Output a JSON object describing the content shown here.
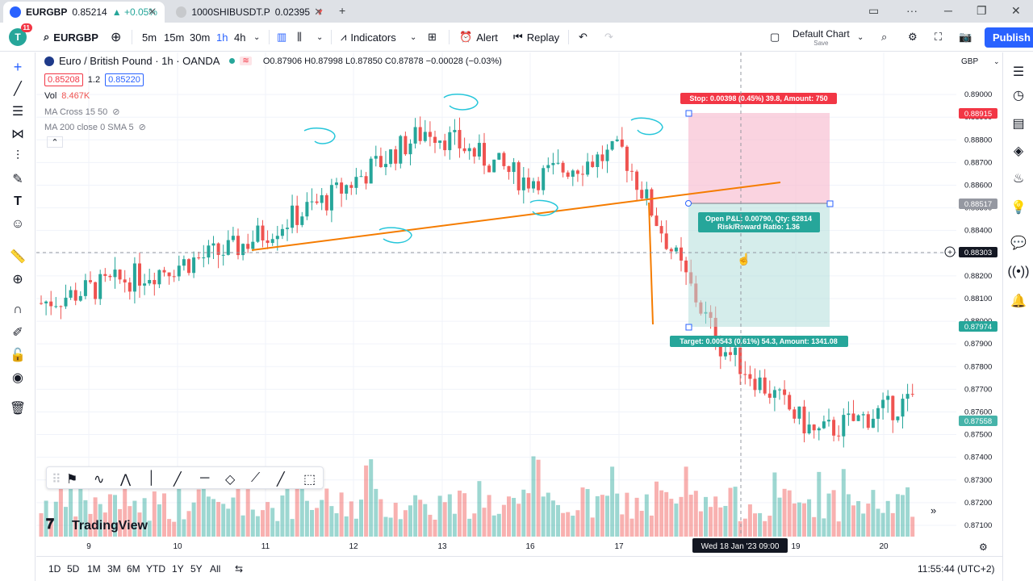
{
  "browser_tabs": [
    {
      "symbol": "EURGBP",
      "price": "0.85214",
      "change": "▲ +0.05%"
    },
    {
      "symbol": "1000SHIBUSDT.P",
      "price": "0.02395",
      "change": "▼"
    }
  ],
  "toolbar": {
    "avatar_letter": "T",
    "notifications": "11",
    "symbol": "EURGBP",
    "intervals": [
      "5m",
      "15m",
      "30m",
      "1h",
      "4h"
    ],
    "active_interval": "1h",
    "indicators_label": "Indicators",
    "alert_label": "Alert",
    "replay_label": "Replay",
    "layout_name": "Default Chart",
    "layout_status": "Save",
    "publish_label": "Publish"
  },
  "legend": {
    "title": "Euro / British Pound · 1h · OANDA",
    "ohlc": "O0.87906 H0.87998 L0.87850 C0.87878 −0.00028 (−0.03%)",
    "bid": "0.85208",
    "spread": "1.2",
    "ask": "0.85220",
    "vol_label": "Vol",
    "vol_value": "8.467K",
    "indicator1": "MA Cross 15 50",
    "indicator2": "MA 200 close 0 SMA 5"
  },
  "price_axis": {
    "currency": "GBP",
    "ticks": [
      "0.89000",
      "0.88900",
      "0.88800",
      "0.88700",
      "0.88600",
      "0.88500",
      "0.88400",
      "0.88300",
      "0.88200",
      "0.88100",
      "0.88000",
      "0.87900",
      "0.87800",
      "0.87700",
      "0.87600",
      "0.87500",
      "0.87400",
      "0.87300",
      "0.87200",
      "0.87100"
    ],
    "stop_label": "0.88915",
    "entry_label": "0.88517",
    "cursor_label": "0.88303",
    "target_label": "0.87974",
    "last_label": "0.87558"
  },
  "time_axis": {
    "ticks": [
      "9",
      "10",
      "11",
      "12",
      "13",
      "16",
      "17",
      "19",
      "20"
    ],
    "cursor_label": "Wed 18 Jan '23  09:00"
  },
  "position_tool": {
    "stop_text": "Stop: 0.00398 (0.45%) 39.8, Amount: 750",
    "pnl_text": "Open P&L: 0.00790, Qty: 62814",
    "rr_text": "Risk/Reward Ratio: 1.36",
    "target_text": "Target: 0.00543 (0.61%) 54.3, Amount: 1341.08"
  },
  "watermark": "TradingView",
  "bottom": {
    "ranges": [
      "1D",
      "5D",
      "1M",
      "3M",
      "6M",
      "YTD",
      "1Y",
      "5Y",
      "All"
    ],
    "clock": "11:55:44 (UTC+2)"
  },
  "colors": {
    "up": "#26a69a",
    "down": "#ef5350",
    "accent": "#2962ff",
    "trendline": "#f57c00",
    "annotation": "#26c6da"
  },
  "chart_data": {
    "type": "candlestick",
    "title": "Euro / British Pound · 1h · OANDA",
    "ylim": [
      0.8705,
      0.891
    ],
    "x": [
      "9",
      "10",
      "11",
      "12",
      "13",
      "16",
      "17",
      "18",
      "19",
      "20"
    ],
    "series": [
      {
        "name": "price path (approx. close)",
        "values": [
          0.8808,
          0.882,
          0.8832,
          0.8855,
          0.8885,
          0.8862,
          0.8875,
          0.879,
          0.875,
          0.8765
        ]
      }
    ]
  }
}
